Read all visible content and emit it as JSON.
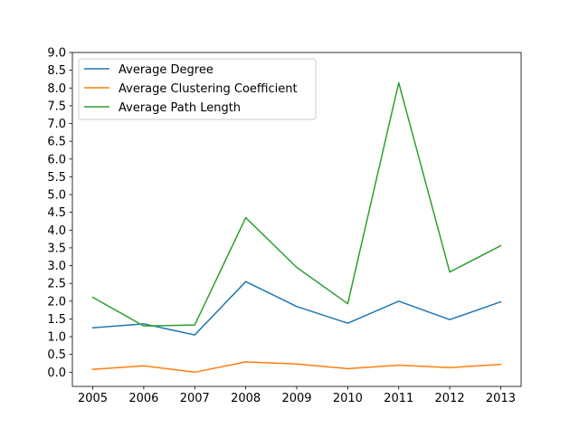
{
  "chart_data": {
    "type": "line",
    "title": "",
    "xlabel": "",
    "ylabel": "",
    "x": [
      2005,
      2006,
      2007,
      2008,
      2009,
      2010,
      2011,
      2012,
      2013
    ],
    "xlim": [
      2004.6,
      2013.4
    ],
    "ylim": [
      -0.4,
      9.0
    ],
    "yticks": [
      0.0,
      0.5,
      1.0,
      1.5,
      2.0,
      2.5,
      3.0,
      3.5,
      4.0,
      4.5,
      5.0,
      5.5,
      6.0,
      6.5,
      7.0,
      7.5,
      8.0,
      8.5,
      9.0
    ],
    "ytick_labels": [
      "0.0",
      "0.5",
      "1.0",
      "1.5",
      "2.0",
      "2.5",
      "3.0",
      "3.5",
      "4.0",
      "4.5",
      "5.0",
      "5.5",
      "6.0",
      "6.5",
      "7.0",
      "7.5",
      "8.0",
      "8.5",
      "9.0"
    ],
    "xtick_labels": [
      "2005",
      "2006",
      "2007",
      "2008",
      "2009",
      "2010",
      "2011",
      "2012",
      "2013"
    ],
    "grid": false,
    "legend_position": "top-left",
    "series": [
      {
        "name": "Average Degree",
        "color": "#1f77b4",
        "values": [
          1.25,
          1.36,
          1.05,
          2.55,
          1.85,
          1.38,
          2.0,
          1.48,
          1.98
        ]
      },
      {
        "name": "Average Clustering Coefficient",
        "color": "#ff7f0e",
        "values": [
          0.08,
          0.18,
          0.0,
          0.29,
          0.23,
          0.1,
          0.2,
          0.13,
          0.22
        ]
      },
      {
        "name": "Average Path Length",
        "color": "#2ca02c",
        "values": [
          2.11,
          1.3,
          1.33,
          4.35,
          2.95,
          1.93,
          8.15,
          2.82,
          3.56
        ]
      }
    ]
  }
}
